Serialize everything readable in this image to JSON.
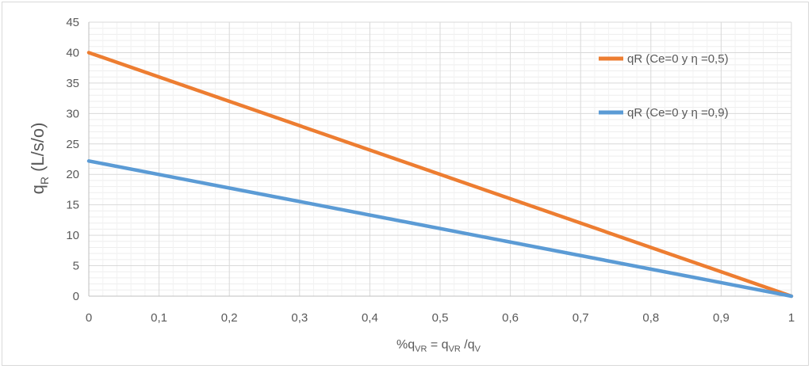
{
  "chart_data": {
    "type": "line",
    "title": "",
    "xlabel": "%qVR = qVR /qV",
    "xlabel_parts": {
      "main": "%q",
      "sub1": "VR",
      "mid": " = q",
      "sub2": "VR",
      "tail": " /q",
      "sub3": "V"
    },
    "ylabel": "qR (L/s/o)",
    "ylabel_parts": {
      "main": "q",
      "sub": "R",
      "tail": " (L/s/o)"
    },
    "xlim": [
      0,
      1
    ],
    "ylim": [
      0,
      45
    ],
    "x_ticks": [
      0,
      0.1,
      0.2,
      0.3,
      0.4,
      0.5,
      0.6,
      0.7,
      0.8,
      0.9,
      1
    ],
    "x_tick_labels": [
      "0",
      "0,1",
      "0,2",
      "0,3",
      "0,4",
      "0,5",
      "0,6",
      "0,7",
      "0,8",
      "0,9",
      "1"
    ],
    "y_ticks": [
      0,
      5,
      10,
      15,
      20,
      25,
      30,
      35,
      40,
      45
    ],
    "y_tick_labels": [
      "0",
      "5",
      "10",
      "15",
      "20",
      "25",
      "30",
      "35",
      "40",
      "45"
    ],
    "grid": true,
    "legend_position": "right",
    "series": [
      {
        "name": "qR (Ce=0 y η =0,5)",
        "color": "#ed7d31",
        "x": [
          0,
          1
        ],
        "y": [
          40,
          0
        ]
      },
      {
        "name": "qR (Ce=0 y η =0,9)",
        "color": "#5b9bd5",
        "x": [
          0,
          1
        ],
        "y": [
          22.2,
          0
        ]
      }
    ]
  }
}
